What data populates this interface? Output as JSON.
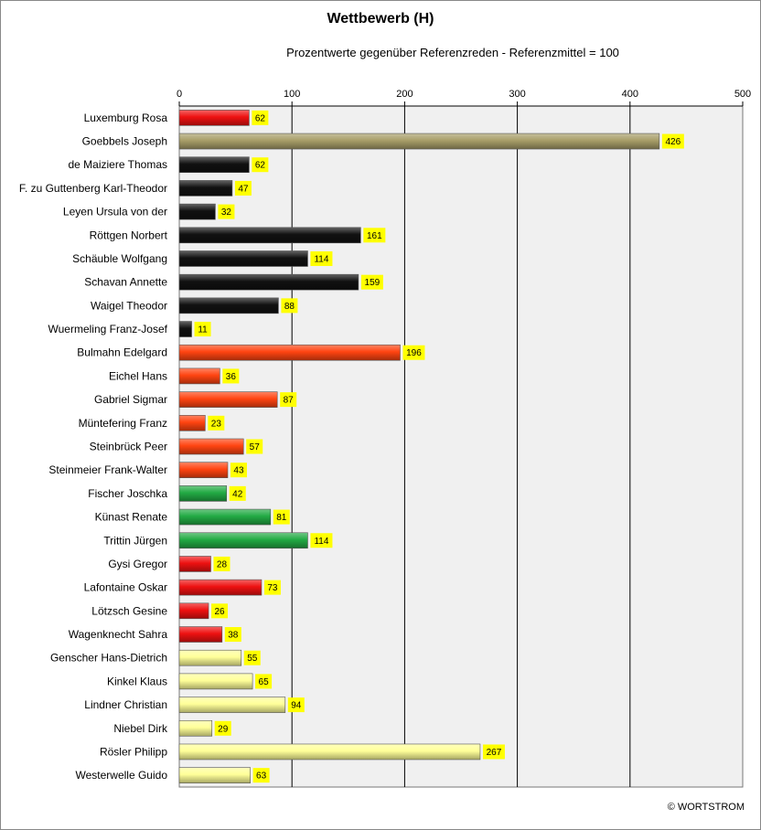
{
  "title": "Wettbewerb (H)",
  "subtitle": "Prozentwerte  gegenüber Referenzreden - Referenzmittel = 100",
  "copyright": "© WORTSTROM",
  "colors": {
    "red": "#ee1111",
    "tan": "#a89e68",
    "black": "#111111",
    "orange": "#ff4411",
    "green": "#22aa44",
    "lightyellow": "#ffff99",
    "label_bg": "#ffff00",
    "plot_bg": "#f0f0f0"
  },
  "chart_data": {
    "type": "bar",
    "orientation": "horizontal",
    "title": "Wettbewerb (H)",
    "subtitle": "Prozentwerte  gegenüber Referenzreden - Referenzmittel = 100",
    "xlim": [
      0,
      500
    ],
    "x_ticks": [
      "0",
      "100",
      "200",
      "300",
      "400",
      "500"
    ],
    "grid": true,
    "categories": [
      "Luxemburg Rosa",
      "Goebbels Joseph",
      "de Maiziere Thomas",
      "F. zu Guttenberg Karl-Theodor",
      "Leyen Ursula von der",
      "Röttgen Norbert",
      "Schäuble Wolfgang",
      "Schavan Annette",
      "Waigel Theodor",
      "Wuermeling Franz-Josef",
      "Bulmahn Edelgard",
      "Eichel Hans",
      "Gabriel Sigmar",
      "Müntefering Franz",
      "Steinbrück Peer",
      "Steinmeier Frank-Walter",
      "Fischer Joschka",
      "Künast Renate",
      "Trittin Jürgen",
      "Gysi Gregor",
      "Lafontaine Oskar",
      "Lötzsch Gesine",
      "Wagenknecht Sahra",
      "Genscher Hans-Dietrich",
      "Kinkel Klaus",
      "Lindner Christian",
      "Niebel Dirk",
      "Rösler Philipp",
      "Westerwelle Guido"
    ],
    "values": [
      62,
      426,
      62,
      47,
      32,
      161,
      114,
      159,
      88,
      11,
      196,
      36,
      87,
      23,
      57,
      43,
      42,
      81,
      114,
      28,
      73,
      26,
      38,
      55,
      65,
      94,
      29,
      267,
      63
    ],
    "bar_colors": [
      "red",
      "tan",
      "black",
      "black",
      "black",
      "black",
      "black",
      "black",
      "black",
      "black",
      "orange",
      "orange",
      "orange",
      "orange",
      "orange",
      "orange",
      "green",
      "green",
      "green",
      "red",
      "red",
      "red",
      "red",
      "lightyellow",
      "lightyellow",
      "lightyellow",
      "lightyellow",
      "lightyellow",
      "lightyellow"
    ]
  }
}
